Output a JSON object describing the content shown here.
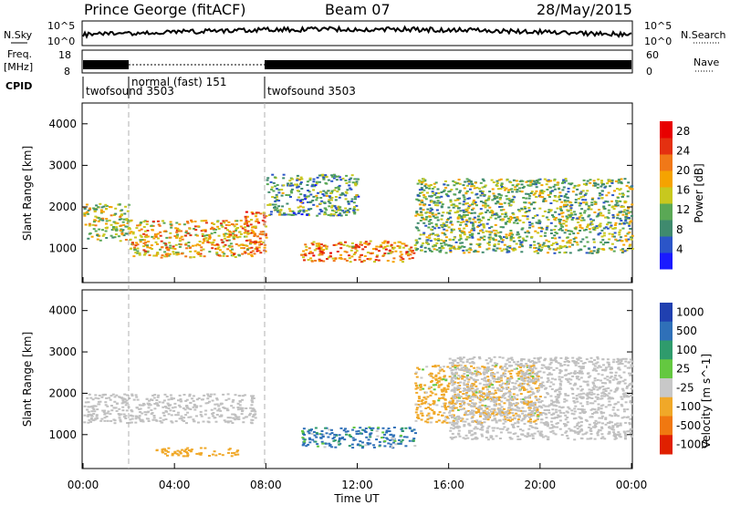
{
  "header": {
    "station": "Prince George (fitACF)",
    "beam": "Beam 07",
    "date": "28/May/2015"
  },
  "noise_panel": {
    "left_label": "N.Sky",
    "left_ticks": [
      "10^5",
      "10^0"
    ],
    "right_ticks": [
      "10^5",
      "10^0"
    ],
    "right_label": "N.Search"
  },
  "freq_panel": {
    "label_line1": "Freq.",
    "label_line2": "[MHz]",
    "left_ticks": [
      "18",
      "8"
    ],
    "right_ticks": [
      "60",
      "0"
    ],
    "right_label": "Nave"
  },
  "cpid": {
    "label": "CPID",
    "programs": [
      "twofsound 3503",
      "normal (fast) 151",
      "twofsound 3503"
    ]
  },
  "colors": {
    "power_scale": [
      "#1a1aff",
      "#2b55c8",
      "#3f8a6e",
      "#5aa855",
      "#c8c81e",
      "#f5a300",
      "#f07818",
      "#e43010",
      "#e80000"
    ],
    "velocity_scale": [
      "#2040b0",
      "#2f70b8",
      "#2f9b6c",
      "#64c840",
      "#c8c8c8",
      "#f0a828",
      "#f07810",
      "#e02000"
    ],
    "ground_scatter": "#c0c0c0"
  },
  "chart_data": [
    {
      "type": "heatmap",
      "title": "",
      "variable": "Power",
      "xlabel": "",
      "ylabel": "Slant Range [km]",
      "ylim": [
        180,
        4500
      ],
      "yticks": [
        1000,
        2000,
        3000,
        4000
      ],
      "colorbar": {
        "label": "Power [dB]",
        "ticks": [
          4,
          8,
          12,
          16,
          20,
          24,
          28
        ],
        "range": [
          0,
          30
        ]
      },
      "echo_regions": [
        {
          "t_start_hr": 0.0,
          "t_end_hr": 2.0,
          "range_km": [
            1200,
            2100
          ],
          "power_db": 14
        },
        {
          "t_start_hr": 2.0,
          "t_end_hr": 7.5,
          "range_km": [
            800,
            1700
          ],
          "power_db": 18
        },
        {
          "t_start_hr": 7.0,
          "t_end_hr": 8.0,
          "range_km": [
            900,
            1900
          ],
          "power_db": 22
        },
        {
          "t_start_hr": 8.0,
          "t_end_hr": 12.0,
          "range_km": [
            1800,
            2800
          ],
          "power_db": 10
        },
        {
          "t_start_hr": 9.5,
          "t_end_hr": 14.5,
          "range_km": [
            700,
            1200
          ],
          "power_db": 20
        },
        {
          "t_start_hr": 14.5,
          "t_end_hr": 24.0,
          "range_km": [
            900,
            2700
          ],
          "power_db": 12
        }
      ]
    },
    {
      "type": "heatmap",
      "title": "",
      "variable": "Velocity",
      "xlabel": "Time UT",
      "ylabel": "Slant Range [km]",
      "ylim": [
        180,
        4500
      ],
      "yticks": [
        1000,
        2000,
        3000,
        4000
      ],
      "xticks": [
        "00:00",
        "04:00",
        "08:00",
        "12:00",
        "16:00",
        "20:00",
        "00:00"
      ],
      "xlim_hr": [
        0,
        24
      ],
      "colorbar": {
        "label": "Velocity [m s^-1]",
        "ticks": [
          "1000",
          "500",
          "100",
          "25",
          "-25",
          "-100",
          "-500",
          "-1000"
        ]
      },
      "echo_regions": [
        {
          "t_start_hr": 0.0,
          "t_end_hr": 7.5,
          "range_km": [
            1300,
            2000
          ],
          "velocity_ms": 0,
          "ground_scatter": true
        },
        {
          "t_start_hr": 3.0,
          "t_end_hr": 6.8,
          "range_km": [
            500,
            700
          ],
          "velocity_ms": -300
        },
        {
          "t_start_hr": 9.5,
          "t_end_hr": 14.5,
          "range_km": [
            700,
            1200
          ],
          "velocity_ms": 150
        },
        {
          "t_start_hr": 14.5,
          "t_end_hr": 20.0,
          "range_km": [
            1300,
            2700
          ],
          "velocity_ms": -200
        },
        {
          "t_start_hr": 16.0,
          "t_end_hr": 24.0,
          "range_km": [
            900,
            2900
          ],
          "velocity_ms": 0,
          "ground_scatter": true
        }
      ]
    }
  ]
}
